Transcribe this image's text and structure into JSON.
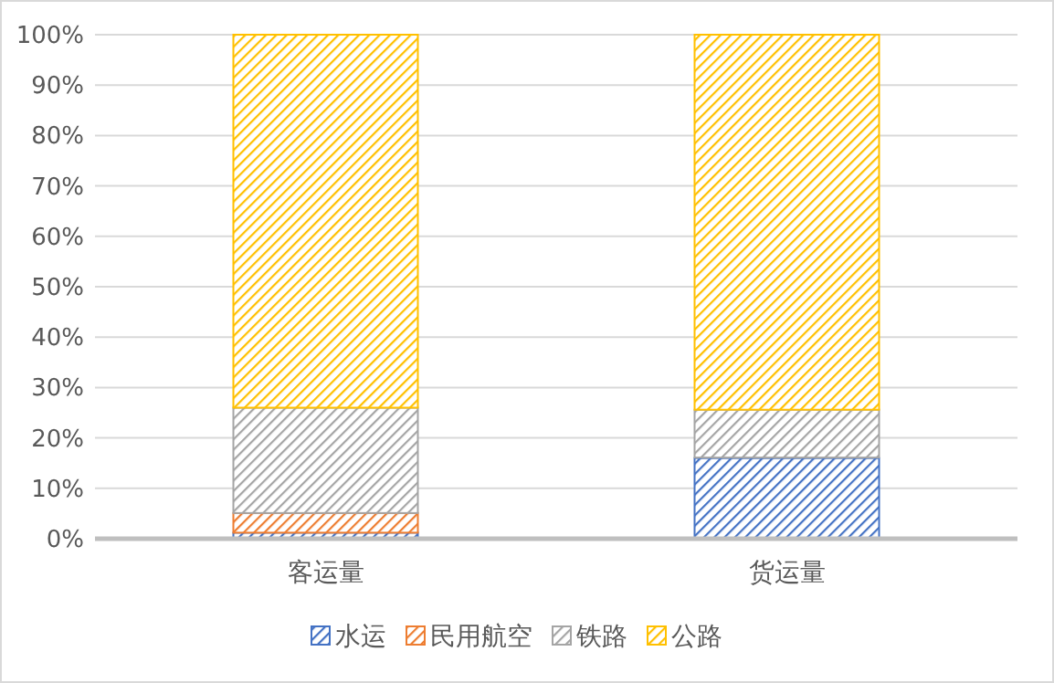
{
  "chart_data": {
    "type": "bar",
    "stacked": true,
    "categories": [
      "客运量",
      "货运量"
    ],
    "series": [
      {
        "name": "水运",
        "color": "#4472c4",
        "values": [
          1.2,
          16.0
        ]
      },
      {
        "name": "民用航空",
        "color": "#ed7d31",
        "values": [
          3.9,
          0.1
        ]
      },
      {
        "name": "铁路",
        "color": "#a5a5a5",
        "values": [
          20.9,
          9.5
        ]
      },
      {
        "name": "公路",
        "color": "#ffc000",
        "values": [
          74.0,
          74.4
        ]
      }
    ],
    "ylim": [
      0,
      100
    ],
    "yticks": [
      {
        "value": 0,
        "label": "0%"
      },
      {
        "value": 10,
        "label": "10%"
      },
      {
        "value": 20,
        "label": "20%"
      },
      {
        "value": 30,
        "label": "30%"
      },
      {
        "value": 40,
        "label": "40%"
      },
      {
        "value": 50,
        "label": "50%"
      },
      {
        "value": 60,
        "label": "60%"
      },
      {
        "value": 70,
        "label": "70%"
      },
      {
        "value": 80,
        "label": "80%"
      },
      {
        "value": 90,
        "label": "90%"
      },
      {
        "value": 100,
        "label": "100%"
      }
    ],
    "grid": "y",
    "legend": "bottom"
  }
}
